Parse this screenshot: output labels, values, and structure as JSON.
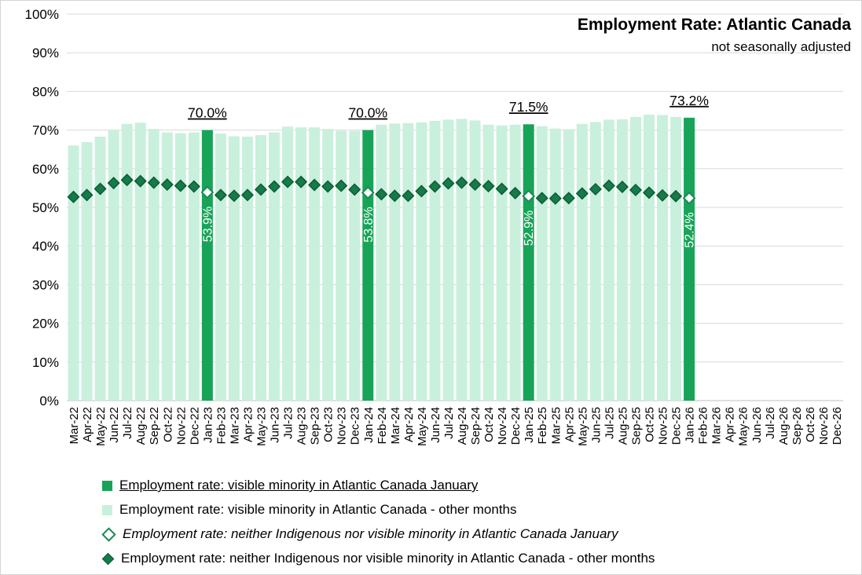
{
  "chart_data": {
    "type": "bar",
    "title": "Employment Rate: Atlantic Canada",
    "subtitle": "not seasonally adjusted",
    "ylim": [
      0,
      100
    ],
    "y_ticks": [
      "0%",
      "10%",
      "20%",
      "30%",
      "40%",
      "50%",
      "60%",
      "70%",
      "80%",
      "90%",
      "100%"
    ],
    "grid": true,
    "legend_position": "bottom",
    "categories": [
      "Mar-22",
      "Apr-22",
      "May-22",
      "Jun-22",
      "Jul-22",
      "Aug-22",
      "Sep-22",
      "Oct-22",
      "Nov-22",
      "Dec-22",
      "Jan-23",
      "Feb-23",
      "Mar-23",
      "Apr-23",
      "May-23",
      "Jun-23",
      "Jul-23",
      "Aug-23",
      "Sep-23",
      "Oct-23",
      "Nov-23",
      "Dec-23",
      "Jan-24",
      "Feb-24",
      "Mar-24",
      "Apr-24",
      "May-24",
      "Jun-24",
      "Jul-24",
      "Aug-24",
      "Sep-24",
      "Oct-24",
      "Nov-24",
      "Dec-24",
      "Jan-25",
      "Feb-25",
      "Mar-25",
      "Apr-25",
      "May-25",
      "Jun-25",
      "Jul-25",
      "Aug-25",
      "Sep-25",
      "Oct-25",
      "Nov-25",
      "Dec-25",
      "Jan-26",
      "Feb-26",
      "Mar-26",
      "Apr-26",
      "May-26",
      "Jun-26",
      "Jul-26",
      "Aug-26",
      "Sep-26",
      "Oct-26",
      "Nov-26",
      "Dec-26"
    ],
    "series": [
      {
        "name": "Employment rate: visible minority in Atlantic Canada January",
        "type": "bar",
        "color": "#17A458",
        "values": [
          null,
          null,
          null,
          null,
          null,
          null,
          null,
          null,
          null,
          null,
          70.0,
          null,
          null,
          null,
          null,
          null,
          null,
          null,
          null,
          null,
          null,
          null,
          70.0,
          null,
          null,
          null,
          null,
          null,
          null,
          null,
          null,
          null,
          null,
          null,
          71.5,
          null,
          null,
          null,
          null,
          null,
          null,
          null,
          null,
          null,
          null,
          null,
          73.2,
          null,
          null,
          null,
          null,
          null,
          null,
          null,
          null,
          null,
          null,
          null
        ],
        "labels": {
          "10": "70.0%",
          "22": "70.0%",
          "34": "71.5%",
          "46": "73.2%"
        },
        "label_style": "black-underlined-above-bar"
      },
      {
        "name": "Employment rate: visible minority in Atlantic Canada - other months",
        "type": "bar",
        "color": "#C9F0DC",
        "values": [
          66.0,
          66.9,
          68.3,
          70.1,
          71.6,
          71.9,
          70.3,
          69.4,
          69.2,
          69.4,
          null,
          69.1,
          68.4,
          68.3,
          68.7,
          69.4,
          70.9,
          70.7,
          70.7,
          70.3,
          69.8,
          69.8,
          null,
          71.4,
          71.7,
          71.8,
          72.0,
          72.4,
          72.7,
          72.9,
          72.5,
          71.4,
          71.2,
          71.4,
          null,
          71.0,
          70.4,
          70.2,
          71.6,
          72.1,
          72.7,
          72.8,
          73.4,
          74.0,
          73.9,
          73.4,
          null,
          null,
          null,
          null,
          null,
          null,
          null,
          null,
          null,
          null,
          null,
          null
        ]
      },
      {
        "name": "Employment rate: neither Indigenous nor visible minority in Atlantic Canada January",
        "type": "scatter",
        "marker": "diamond-hollow",
        "marker_fill": "#FFFFFF",
        "marker_stroke": "#1C8A54",
        "values": [
          null,
          null,
          null,
          null,
          null,
          null,
          null,
          null,
          null,
          null,
          53.9,
          null,
          null,
          null,
          null,
          null,
          null,
          null,
          null,
          null,
          null,
          null,
          53.8,
          null,
          null,
          null,
          null,
          null,
          null,
          null,
          null,
          null,
          null,
          null,
          52.9,
          null,
          null,
          null,
          null,
          null,
          null,
          null,
          null,
          null,
          null,
          null,
          52.4,
          null,
          null,
          null,
          null,
          null,
          null,
          null,
          null,
          null,
          null,
          null
        ],
        "labels": {
          "10": "53.9%",
          "22": "53.8%",
          "34": "52.9%",
          "46": "52.4%"
        },
        "label_style": "white-vertical-inside-bar"
      },
      {
        "name": "Employment rate: neither Indigenous nor visible minority in Atlantic Canada - other months",
        "type": "scatter",
        "marker": "diamond-filled",
        "marker_fill": "#167A49",
        "marker_stroke": "#0C5C35",
        "values": [
          52.7,
          53.2,
          54.8,
          56.3,
          57.1,
          56.8,
          56.4,
          55.9,
          55.6,
          55.4,
          null,
          53.2,
          53.0,
          53.2,
          54.6,
          55.4,
          56.6,
          56.6,
          55.8,
          55.4,
          55.6,
          54.6,
          null,
          53.4,
          53.0,
          53.0,
          54.2,
          55.4,
          56.2,
          56.4,
          55.9,
          55.5,
          54.8,
          53.7,
          null,
          52.4,
          52.3,
          52.4,
          53.6,
          54.7,
          55.6,
          55.3,
          54.5,
          53.8,
          53.1,
          52.9,
          null,
          null,
          null,
          null,
          null,
          null,
          null,
          null,
          null,
          null,
          null,
          null
        ]
      }
    ]
  },
  "colors": {
    "gridline": "#D9D9D9",
    "axis_line": "#BFBFBF",
    "text": "#000000",
    "in_bar_label": "#FFFFFF",
    "background": "#FFFFFF"
  }
}
